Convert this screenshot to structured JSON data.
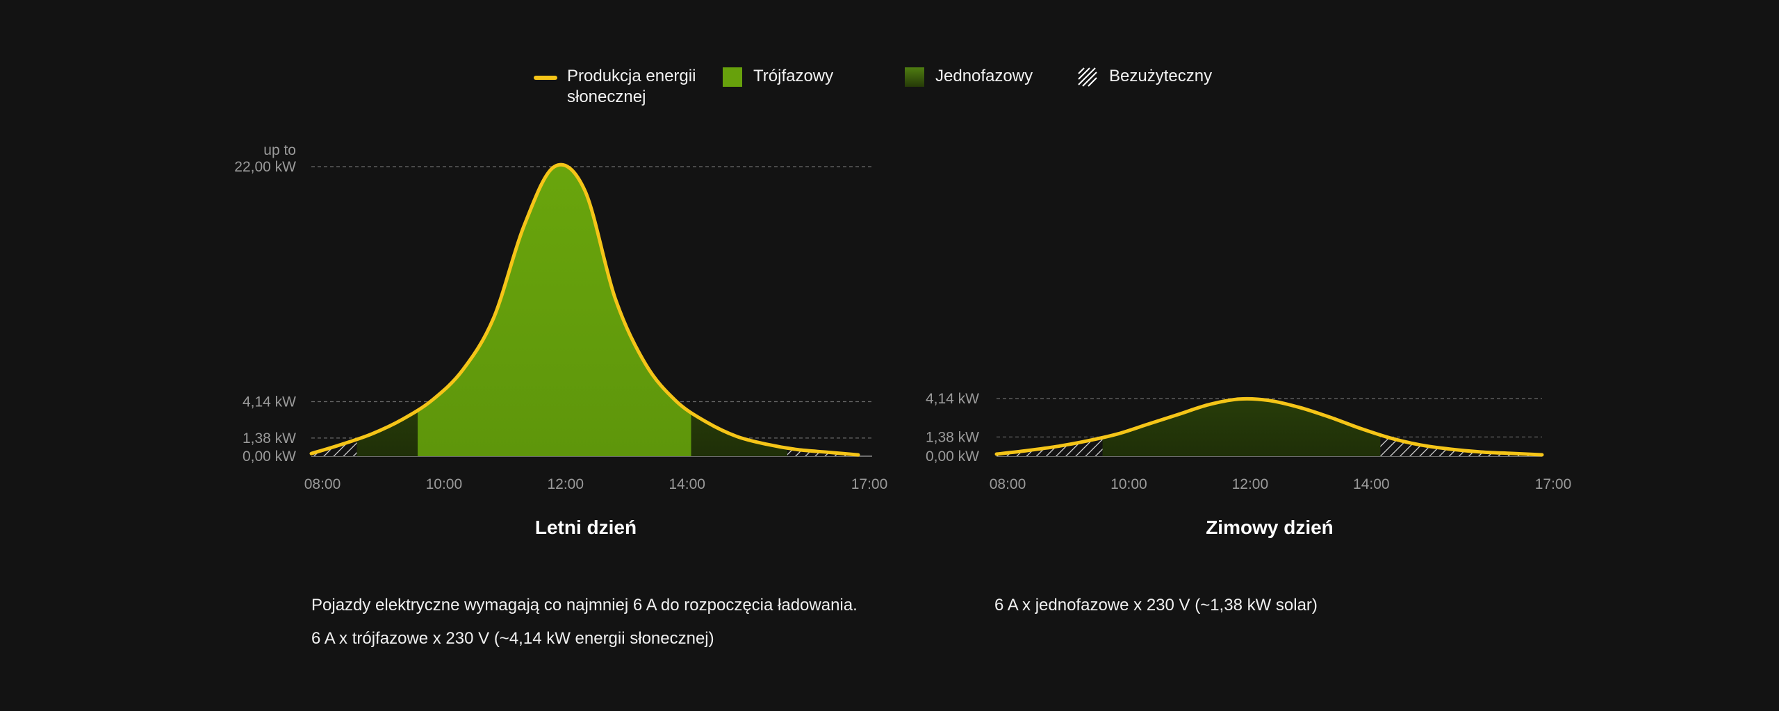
{
  "legend": {
    "solar": {
      "label": "Produkcja energii\nsłonecznej",
      "color": "#f5c518",
      "icon": "solar-line-icon"
    },
    "three_phase": {
      "label": "Trójfazowy",
      "color": "#67a10c",
      "icon": "three-phase-swatch-icon"
    },
    "single_phase": {
      "label": "Jednofazowy",
      "color": "#4d7a10",
      "icon": "single-phase-swatch-icon"
    },
    "unusable": {
      "label": "Bezużyteczny",
      "icon": "hatch-pattern-icon"
    }
  },
  "colors": {
    "background": "#131313",
    "solar": "#f5c518",
    "three_phase": "#67a10c",
    "single_phase": "#4b7a10",
    "grid": "#6a6a6a",
    "tick": "#9a9a9a"
  },
  "chart_data": [
    {
      "type": "area",
      "title": "Letni dzień",
      "x_ticks": [
        "08:00",
        "10:00",
        "12:00",
        "14:00",
        "17:00"
      ],
      "y_ticks": [
        {
          "value": 0.0,
          "label": "0,00 kW"
        },
        {
          "value": 1.38,
          "label": "1,38 kW"
        },
        {
          "value": 4.14,
          "label": "4,14 kW"
        },
        {
          "value": 22.0,
          "label": "22,00 kW",
          "prefix": "up to"
        }
      ],
      "ylim": [
        0,
        22
      ],
      "series": [
        {
          "name": "Produkcja energii słonecznej",
          "x": [
            "08:00",
            "08:30",
            "09:00",
            "09:30",
            "10:00",
            "10:30",
            "11:00",
            "11:30",
            "12:00",
            "12:30",
            "13:00",
            "13:30",
            "14:00",
            "14:30",
            "15:00",
            "15:30",
            "16:00",
            "16:30",
            "17:00"
          ],
          "values": [
            0.2,
            0.9,
            1.7,
            2.8,
            4.3,
            6.6,
            10.5,
            17.5,
            22.0,
            20.2,
            12.0,
            7.0,
            4.2,
            2.6,
            1.5,
            0.9,
            0.5,
            0.3,
            0.1
          ]
        }
      ],
      "zones": [
        {
          "type": "unusable",
          "from": "08:00",
          "to": "08:45"
        },
        {
          "type": "single_phase",
          "from": "08:45",
          "to": "09:45"
        },
        {
          "type": "three_phase",
          "from": "09:45",
          "to": "14:15"
        },
        {
          "type": "single_phase",
          "from": "14:15",
          "to": "15:50"
        },
        {
          "type": "unusable",
          "from": "15:50",
          "to": "17:00"
        }
      ]
    },
    {
      "type": "area",
      "title": "Zimowy dzień",
      "x_ticks": [
        "08:00",
        "10:00",
        "12:00",
        "14:00",
        "17:00"
      ],
      "y_ticks": [
        {
          "value": 0.0,
          "label": "0,00 kW"
        },
        {
          "value": 1.38,
          "label": "1,38 kW"
        },
        {
          "value": 4.14,
          "label": "4,14 kW"
        }
      ],
      "ylim": [
        0,
        4.14
      ],
      "series": [
        {
          "name": "Produkcja energii słonecznej",
          "x": [
            "08:00",
            "08:30",
            "09:00",
            "09:30",
            "10:00",
            "10:30",
            "11:00",
            "11:30",
            "12:00",
            "12:30",
            "13:00",
            "13:30",
            "14:00",
            "14:30",
            "15:00",
            "15:30",
            "16:00",
            "16:30",
            "17:00"
          ],
          "values": [
            0.15,
            0.4,
            0.7,
            1.1,
            1.6,
            2.3,
            3.0,
            3.7,
            4.1,
            4.0,
            3.5,
            2.8,
            2.0,
            1.3,
            0.8,
            0.5,
            0.3,
            0.2,
            0.1
          ]
        }
      ],
      "zones": [
        {
          "type": "unusable",
          "from": "08:00",
          "to": "09:45"
        },
        {
          "type": "single_phase",
          "from": "09:45",
          "to": "14:20"
        },
        {
          "type": "unusable",
          "from": "14:20",
          "to": "17:00"
        }
      ]
    }
  ],
  "notes": {
    "summer_1": "Pojazdy elektryczne wymagają co najmniej 6 A do rozpoczęcia ładowania.",
    "summer_2": "6 A x trójfazowe x 230 V (~4,14 kW energii słonecznej)",
    "winter_1": "6 A x jednofazowe x 230 V (~1,38 kW solar)"
  }
}
